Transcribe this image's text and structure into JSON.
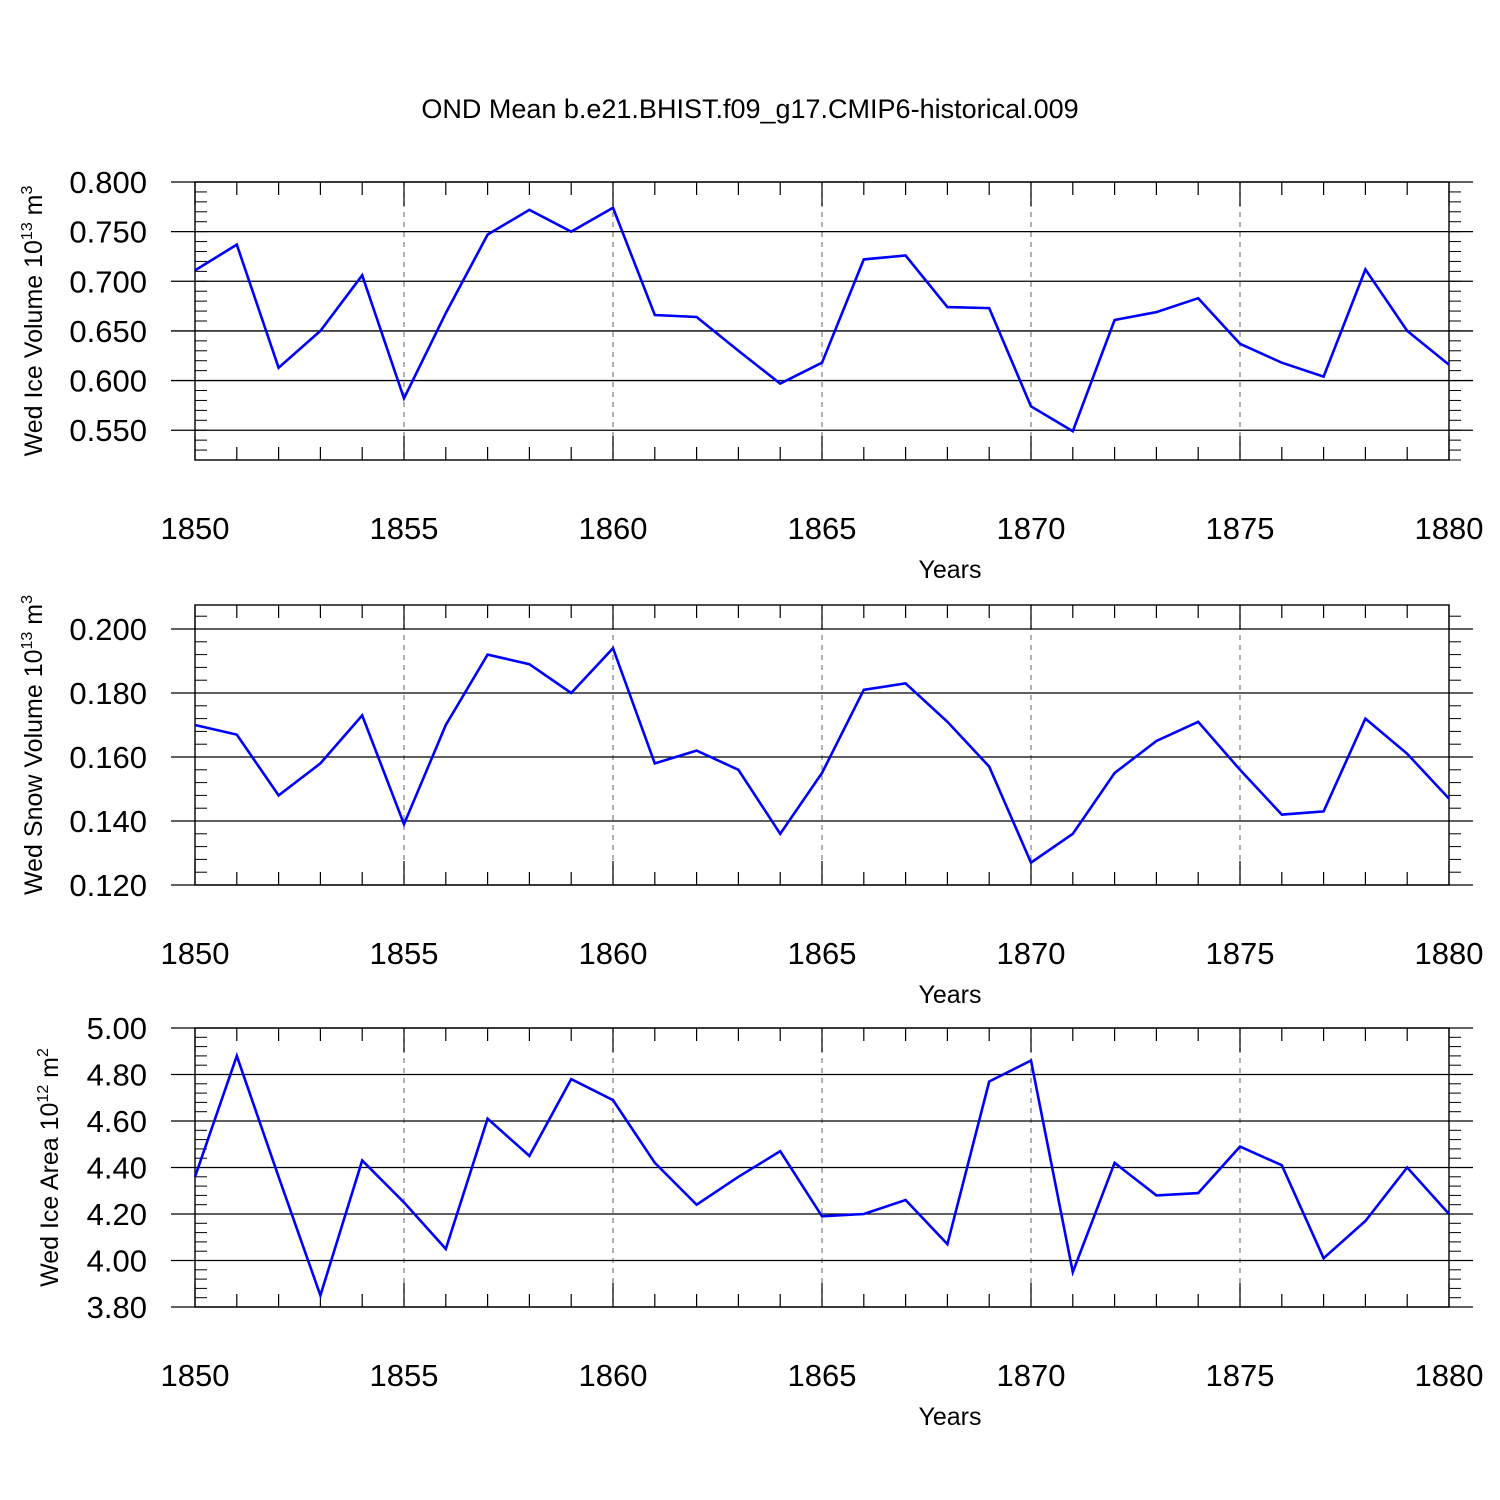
{
  "title": "OND Mean b.e21.BHIST.f09_g17.CMIP6-historical.009",
  "colors": {
    "line": "#0000ff",
    "axis": "#000000",
    "grid": "#888888"
  },
  "chart_data": [
    {
      "type": "line",
      "ylabel": {
        "text": "Wed Ice Volume 10",
        "sup1": "13",
        "mid": " m",
        "sup2": "3"
      },
      "xlabel": "Years",
      "xlim": [
        1850,
        1880
      ],
      "ylim": [
        0.52,
        0.8
      ],
      "yticks": [
        0.55,
        0.6,
        0.65,
        0.7,
        0.75,
        0.8
      ],
      "ytick_labels": [
        "0.550",
        "0.600",
        "0.650",
        "0.700",
        "0.750",
        "0.800"
      ],
      "ydecimals": 3,
      "xticks": [
        1850,
        1855,
        1860,
        1865,
        1870,
        1875,
        1880
      ],
      "xtick_labels": [
        "1850",
        "1855",
        "1860",
        "1865",
        "1870",
        "1875",
        "1880"
      ],
      "grid": "vertical dashed at major x ticks",
      "series": [
        {
          "x": [
            1850,
            1851,
            1852,
            1853,
            1854,
            1855,
            1856,
            1857,
            1858,
            1859,
            1860,
            1861,
            1862,
            1863,
            1864,
            1865,
            1866,
            1867,
            1868,
            1869,
            1870,
            1871,
            1872,
            1873,
            1874,
            1875,
            1876,
            1877,
            1878,
            1879,
            1880
          ],
          "values": [
            0.711,
            0.737,
            0.613,
            0.65,
            0.706,
            0.582,
            0.668,
            0.747,
            0.772,
            0.75,
            0.774,
            0.666,
            0.664,
            0.63,
            0.597,
            0.618,
            0.722,
            0.726,
            0.674,
            0.673,
            0.574,
            0.549,
            0.661,
            0.669,
            0.683,
            0.637,
            0.618,
            0.604,
            0.712,
            0.65,
            0.616
          ]
        }
      ]
    },
    {
      "type": "line",
      "ylabel": {
        "text": "Wed Snow Volume 10",
        "sup1": "13",
        "mid": " m",
        "sup2": "3"
      },
      "xlabel": "Years",
      "xlim": [
        1850,
        1880
      ],
      "ylim": [
        0.12,
        0.2075
      ],
      "yticks": [
        0.12,
        0.14,
        0.16,
        0.18,
        0.2
      ],
      "ytick_labels": [
        "0.120",
        "0.140",
        "0.160",
        "0.180",
        "0.200"
      ],
      "ydecimals": 3,
      "xticks": [
        1850,
        1855,
        1860,
        1865,
        1870,
        1875,
        1880
      ],
      "xtick_labels": [
        "1850",
        "1855",
        "1860",
        "1865",
        "1870",
        "1875",
        "1880"
      ],
      "grid": "vertical dashed at major x ticks",
      "series": [
        {
          "x": [
            1850,
            1851,
            1852,
            1853,
            1854,
            1855,
            1856,
            1857,
            1858,
            1859,
            1860,
            1861,
            1862,
            1863,
            1864,
            1865,
            1866,
            1867,
            1868,
            1869,
            1870,
            1871,
            1872,
            1873,
            1874,
            1875,
            1876,
            1877,
            1878,
            1879,
            1880
          ],
          "values": [
            0.17,
            0.167,
            0.148,
            0.158,
            0.173,
            0.139,
            0.17,
            0.192,
            0.189,
            0.18,
            0.194,
            0.158,
            0.162,
            0.156,
            0.136,
            0.155,
            0.181,
            0.183,
            0.171,
            0.157,
            0.127,
            0.136,
            0.155,
            0.165,
            0.171,
            0.156,
            0.142,
            0.143,
            0.172,
            0.161,
            0.147
          ]
        }
      ]
    },
    {
      "type": "line",
      "ylabel": {
        "text": "Wed Ice Area 10",
        "sup1": "12",
        "mid": " m",
        "sup2": "2"
      },
      "xlabel": "Years",
      "xlim": [
        1850,
        1880
      ],
      "ylim": [
        3.8,
        5.0
      ],
      "yticks": [
        3.8,
        4.0,
        4.2,
        4.4,
        4.6,
        4.8,
        5.0
      ],
      "ytick_labels": [
        "3.80",
        "4.00",
        "4.20",
        "4.40",
        "4.60",
        "4.80",
        "5.00"
      ],
      "ydecimals": 2,
      "xticks": [
        1850,
        1855,
        1860,
        1865,
        1870,
        1875,
        1880
      ],
      "xtick_labels": [
        "1850",
        "1855",
        "1860",
        "1865",
        "1870",
        "1875",
        "1880"
      ],
      "grid": "vertical dashed at major x ticks",
      "series": [
        {
          "x": [
            1850,
            1851,
            1852,
            1853,
            1854,
            1855,
            1856,
            1857,
            1858,
            1859,
            1860,
            1861,
            1862,
            1863,
            1864,
            1865,
            1866,
            1867,
            1868,
            1869,
            1870,
            1871,
            1872,
            1873,
            1874,
            1875,
            1876,
            1877,
            1878,
            1879,
            1880
          ],
          "values": [
            4.36,
            4.88,
            4.36,
            3.85,
            4.43,
            4.25,
            4.05,
            4.61,
            4.45,
            4.78,
            4.69,
            4.42,
            4.24,
            4.36,
            4.47,
            4.19,
            4.2,
            4.26,
            4.07,
            4.77,
            4.86,
            3.95,
            4.42,
            4.28,
            4.29,
            4.49,
            4.41,
            4.01,
            4.17,
            4.4,
            4.2
          ]
        }
      ]
    }
  ]
}
